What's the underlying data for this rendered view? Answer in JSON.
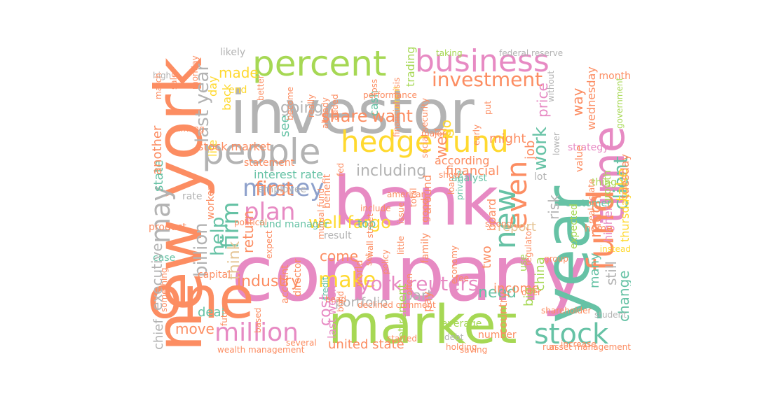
{
  "palette": {
    "orange": "#fc8d62",
    "pink": "#e78ac3",
    "green": "#a6d854",
    "gray": "#b3b3b3",
    "teal": "#66c2a5",
    "yellow": "#ffd92f",
    "tan": "#e5c494",
    "blue": "#8da0cb"
  },
  "words": [
    {
      "t": "new york",
      "c": "orange"
    },
    {
      "t": "investor",
      "c": "gray"
    },
    {
      "t": "company",
      "c": "pink"
    },
    {
      "t": "bank",
      "c": "pink"
    },
    {
      "t": "year",
      "c": "teal"
    },
    {
      "t": "one",
      "c": "orange"
    },
    {
      "t": "market",
      "c": "green"
    },
    {
      "t": "percent",
      "c": "green"
    },
    {
      "t": "business",
      "c": "pink"
    },
    {
      "t": "time",
      "c": "pink"
    },
    {
      "t": "people",
      "c": "gray"
    },
    {
      "t": "hedge fund",
      "c": "yellow"
    },
    {
      "t": "fund",
      "c": "orange"
    },
    {
      "t": "stock",
      "c": "teal"
    },
    {
      "t": "million",
      "c": "pink"
    },
    {
      "t": "may",
      "c": "gray"
    },
    {
      "t": "investment",
      "c": "orange"
    },
    {
      "t": "money",
      "c": "blue"
    },
    {
      "t": "plan",
      "c": "pink"
    },
    {
      "t": "firm",
      "c": "teal"
    },
    {
      "t": "make",
      "c": "yellow"
    },
    {
      "t": "even",
      "c": "orange"
    },
    {
      "t": "new",
      "c": "teal"
    },
    {
      "t": "work",
      "c": "teal"
    },
    {
      "t": "client",
      "c": "teal"
    },
    {
      "t": "take",
      "c": "yellow"
    },
    {
      "t": "well fargo",
      "c": "yellow"
    },
    {
      "t": "york reuters",
      "c": "pink"
    },
    {
      "t": "billion",
      "c": "gray"
    },
    {
      "t": "help",
      "c": "teal"
    },
    {
      "t": "think",
      "c": "tan"
    },
    {
      "t": "return",
      "c": "orange"
    },
    {
      "t": "first",
      "c": "orange"
    },
    {
      "t": "including",
      "c": "gray"
    },
    {
      "t": "share",
      "c": "orange"
    },
    {
      "t": "want",
      "c": "orange"
    },
    {
      "t": "going",
      "c": "gray"
    },
    {
      "t": "made",
      "c": "yellow"
    },
    {
      "t": "last year",
      "c": "gray"
    },
    {
      "t": "executive",
      "c": "gray"
    },
    {
      "t": "industry",
      "c": "orange"
    },
    {
      "t": "cost",
      "c": "pink"
    },
    {
      "t": "come",
      "c": "orange"
    },
    {
      "t": "need",
      "c": "teal"
    },
    {
      "t": "part",
      "c": "gray"
    },
    {
      "t": "portfolio",
      "c": "gray"
    },
    {
      "t": "way",
      "c": "orange"
    },
    {
      "t": "job",
      "c": "orange"
    },
    {
      "t": "risk",
      "c": "gray"
    },
    {
      "t": "price",
      "c": "pink"
    },
    {
      "t": "much",
      "c": "orange"
    },
    {
      "t": "still",
      "c": "gray"
    },
    {
      "t": "many",
      "c": "teal"
    },
    {
      "t": "change",
      "c": "teal"
    },
    {
      "t": "report",
      "c": "tan"
    },
    {
      "t": "well",
      "c": "orange"
    },
    {
      "t": "go",
      "c": "yellow"
    },
    {
      "t": "financial",
      "c": "orange"
    },
    {
      "t": "might",
      "c": "orange"
    },
    {
      "t": "move",
      "c": "orange"
    },
    {
      "t": "deal",
      "c": "teal"
    },
    {
      "t": "chief",
      "c": "gray"
    },
    {
      "t": "state",
      "c": "teal"
    },
    {
      "t": "another",
      "c": "orange"
    },
    {
      "t": "united state",
      "c": "orange"
    },
    {
      "t": "last week",
      "c": "pink"
    },
    {
      "t": "retirement",
      "c": "green"
    },
    {
      "t": "income",
      "c": "orange"
    },
    {
      "t": "two",
      "c": "orange"
    },
    {
      "t": "country",
      "c": "orange"
    },
    {
      "t": "big",
      "c": "green"
    },
    {
      "t": "china",
      "c": "green"
    },
    {
      "t": "day",
      "c": "yellow"
    },
    {
      "t": "back",
      "c": "yellow"
    },
    {
      "t": "life",
      "c": "yellow"
    },
    {
      "t": "see",
      "c": "teal"
    },
    {
      "t": "according",
      "c": "orange"
    },
    {
      "t": "interest rate",
      "c": "teal"
    },
    {
      "t": "stock market",
      "c": "orange"
    },
    {
      "t": "fund manager",
      "c": "teal"
    },
    {
      "t": "likely",
      "c": "gray"
    },
    {
      "t": "end",
      "c": "yellow"
    },
    {
      "t": "trading",
      "c": "green"
    },
    {
      "t": "cash",
      "c": "teal"
    },
    {
      "t": "top",
      "c": "teal"
    },
    {
      "t": "around",
      "c": "orange"
    },
    {
      "t": "board",
      "c": "orange"
    },
    {
      "t": "analyst",
      "c": "teal"
    },
    {
      "t": "lot",
      "c": "gray"
    },
    {
      "t": "pay",
      "c": "orange"
    },
    {
      "t": "average",
      "c": "green"
    },
    {
      "t": "number",
      "c": "orange"
    },
    {
      "t": "thursday",
      "c": "yellow"
    },
    {
      "t": "tuesday",
      "c": "orange"
    },
    {
      "t": "higher",
      "c": "pink"
    },
    {
      "t": "growth",
      "c": "green"
    },
    {
      "t": "wednesday",
      "c": "orange"
    },
    {
      "t": "strategy",
      "c": "pink"
    },
    {
      "t": "month",
      "c": "orange"
    },
    {
      "t": "customer",
      "c": "teal"
    },
    {
      "t": "home",
      "c": "orange"
    },
    {
      "t": "thing",
      "c": "green"
    },
    {
      "t": "value",
      "c": "orange"
    },
    {
      "t": "expected",
      "c": "green"
    },
    {
      "t": "worker",
      "c": "orange"
    },
    {
      "t": "product",
      "c": "orange"
    },
    {
      "t": "case",
      "c": "teal"
    },
    {
      "t": "rate",
      "c": "gray"
    },
    {
      "t": "capital",
      "c": "orange"
    },
    {
      "t": "account",
      "c": "orange"
    },
    {
      "t": "director",
      "c": "orange"
    },
    {
      "t": "employee",
      "c": "gray"
    },
    {
      "t": "benefit",
      "c": "orange"
    },
    {
      "t": "result",
      "c": "gray"
    },
    {
      "t": "statement",
      "c": "orange"
    },
    {
      "t": "world",
      "c": "orange"
    },
    {
      "t": "good",
      "c": "orange"
    },
    {
      "t": "family",
      "c": "orange"
    },
    {
      "t": "use",
      "c": "green"
    },
    {
      "t": "shareholder",
      "c": "orange"
    },
    {
      "t": "offer",
      "c": "orange"
    },
    {
      "t": "run",
      "c": "orange"
    },
    {
      "t": "student",
      "c": "gray"
    },
    {
      "t": "instead",
      "c": "yellow"
    },
    {
      "t": "government",
      "c": "green"
    },
    {
      "t": "federal reserve",
      "c": "gray"
    },
    {
      "t": "taking",
      "c": "green"
    },
    {
      "t": "without",
      "c": "gray"
    },
    {
      "t": "put",
      "c": "orange"
    },
    {
      "t": "early",
      "c": "orange"
    },
    {
      "t": "among",
      "c": "orange"
    },
    {
      "t": "monday",
      "c": "orange"
    },
    {
      "t": "sale",
      "c": "orange"
    },
    {
      "t": "better",
      "c": "orange"
    },
    {
      "t": "become",
      "c": "orange"
    },
    {
      "t": "fed",
      "c": "orange"
    },
    {
      "t": "loss",
      "c": "orange"
    },
    {
      "t": "current",
      "c": "yellow"
    },
    {
      "t": "social security",
      "c": "orange"
    },
    {
      "t": "holding",
      "c": "orange"
    },
    {
      "t": "saving",
      "c": "orange"
    },
    {
      "t": "debt",
      "c": "gray"
    },
    {
      "t": "bond",
      "c": "orange"
    },
    {
      "t": "credit",
      "c": "teal"
    },
    {
      "t": "declined comment",
      "c": "orange"
    },
    {
      "t": "already",
      "c": "orange"
    },
    {
      "t": "added",
      "c": "orange"
    },
    {
      "t": "really",
      "c": "orange"
    },
    {
      "t": "performance",
      "c": "orange"
    },
    {
      "t": "high",
      "c": "gray"
    },
    {
      "t": "march",
      "c": "orange"
    },
    {
      "t": "political",
      "c": "orange"
    },
    {
      "t": "private",
      "c": "teal"
    },
    {
      "t": "strong",
      "c": "orange"
    },
    {
      "t": "lower",
      "c": "gray"
    },
    {
      "t": "show",
      "c": "orange"
    },
    {
      "t": "real estate",
      "c": "orange"
    },
    {
      "t": "asset management",
      "c": "orange"
    },
    {
      "t": "wealth management",
      "c": "orange"
    },
    {
      "t": "something",
      "c": "orange"
    },
    {
      "t": "future",
      "c": "orange"
    },
    {
      "t": "head",
      "c": "orange"
    },
    {
      "t": "set",
      "c": "orange"
    },
    {
      "t": "often",
      "c": "orange"
    },
    {
      "t": "fee",
      "c": "orange"
    },
    {
      "t": "loan",
      "c": "orange"
    },
    {
      "t": "regulator",
      "c": "orange"
    },
    {
      "t": "increase",
      "c": "orange"
    },
    {
      "t": "group",
      "c": "orange"
    },
    {
      "t": "american",
      "c": "orange"
    },
    {
      "t": "total",
      "c": "orange"
    },
    {
      "t": "issue",
      "c": "orange"
    },
    {
      "t": "economy",
      "c": "orange"
    },
    {
      "t": "policy",
      "c": "orange"
    },
    {
      "t": "financial crisis",
      "c": "orange"
    },
    {
      "t": "wall street",
      "c": "orange"
    },
    {
      "t": "expect",
      "c": "orange"
    },
    {
      "t": "little",
      "c": "orange"
    },
    {
      "t": "mutual fund",
      "c": "orange"
    },
    {
      "t": "include",
      "c": "orange"
    },
    {
      "t": "based",
      "c": "orange"
    },
    {
      "t": "several",
      "c": "orange"
    },
    {
      "t": "started",
      "c": "orange"
    },
    {
      "t": "major",
      "c": "orange"
    }
  ]
}
